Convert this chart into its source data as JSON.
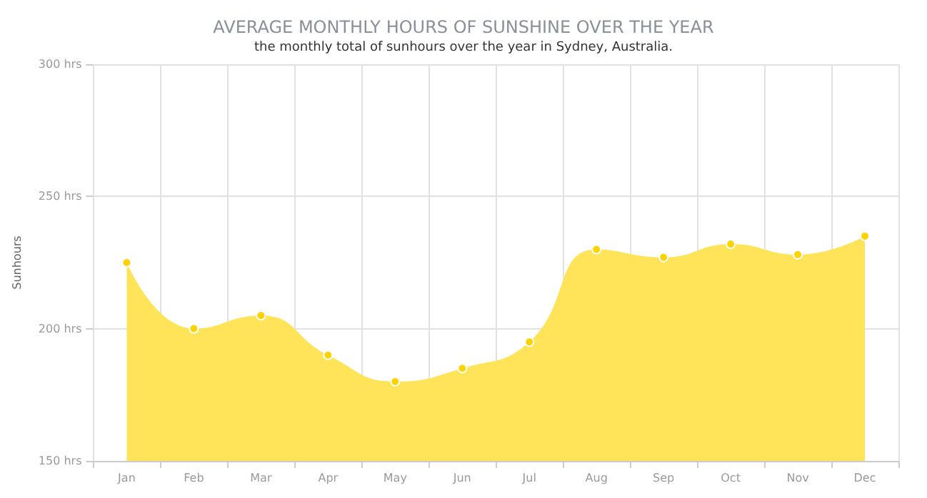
{
  "chart_data": {
    "type": "area",
    "title": "AVERAGE MONTHLY HOURS OF SUNSHINE OVER THE YEAR",
    "subtitle": "the monthly total of sunhours over the year in Sydney, Australia.",
    "ylabel": "Sunhours",
    "categories": [
      "Jan",
      "Feb",
      "Mar",
      "Apr",
      "May",
      "Jun",
      "Jul",
      "Aug",
      "Sep",
      "Oct",
      "Nov",
      "Dec"
    ],
    "series": [
      {
        "color": "#ffe359",
        "values": [
          225,
          200,
          205,
          190,
          180,
          185,
          195,
          230,
          227,
          232,
          228,
          235
        ]
      }
    ],
    "ylim": [
      150,
      300
    ],
    "yticks": [
      {
        "value": 150,
        "label": "150 hrs"
      },
      {
        "value": 200,
        "label": "200 hrs"
      },
      {
        "value": 250,
        "label": "250 hrs"
      },
      {
        "value": 300,
        "label": "300 hrs"
      }
    ],
    "grid": true,
    "marker": "circle"
  }
}
